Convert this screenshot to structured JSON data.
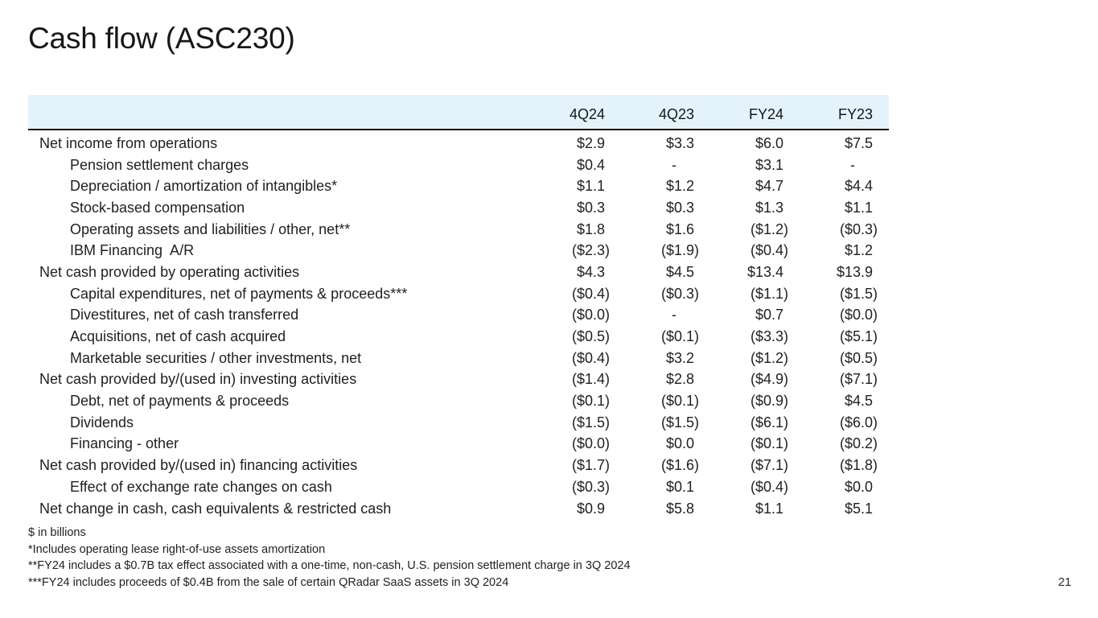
{
  "slide": {
    "title": "Cash flow (ASC230)",
    "page_number": "21",
    "units_note": "$ in billions"
  },
  "colors": {
    "header_band": "#e4f2fb",
    "header_divider": "#161616",
    "text": "#1f1f1f",
    "background": "#ffffff"
  },
  "table": {
    "columns": [
      "4Q24",
      "4Q23",
      "FY24",
      "FY23"
    ],
    "rows": [
      {
        "label": "Net income from operations",
        "indent": 0,
        "values": [
          "$2.9",
          "$3.3",
          "$6.0",
          "$7.5"
        ]
      },
      {
        "label": "Pension settlement charges",
        "indent": 1,
        "values": [
          "$0.4",
          "-",
          "$3.1",
          "-"
        ]
      },
      {
        "label": "Depreciation / amortization of intangibles*",
        "indent": 1,
        "values": [
          "$1.1",
          "$1.2",
          "$4.7",
          "$4.4"
        ]
      },
      {
        "label": "Stock-based compensation",
        "indent": 1,
        "values": [
          "$0.3",
          "$0.3",
          "$1.3",
          "$1.1"
        ]
      },
      {
        "label": "Operating assets and liabilities / other, net**",
        "indent": 1,
        "values": [
          "$1.8",
          "$1.6",
          "($1.2)",
          "($0.3)"
        ]
      },
      {
        "label": "IBM Financing  A/R",
        "indent": 1,
        "values": [
          "($2.3)",
          "($1.9)",
          "($0.4)",
          "$1.2"
        ]
      },
      {
        "label": "Net cash provided by operating activities",
        "indent": 0,
        "values": [
          "$4.3",
          "$4.5",
          "$13.4",
          "$13.9"
        ]
      },
      {
        "label": "Capital expenditures, net of payments & proceeds***",
        "indent": 1,
        "values": [
          "($0.4)",
          "($0.3)",
          "($1.1)",
          "($1.5)"
        ]
      },
      {
        "label": "Divestitures, net of cash transferred",
        "indent": 1,
        "values": [
          "($0.0)",
          "-",
          "$0.7",
          "($0.0)"
        ]
      },
      {
        "label": "Acquisitions, net of cash acquired",
        "indent": 1,
        "values": [
          "($0.5)",
          "($0.1)",
          "($3.3)",
          "($5.1)"
        ]
      },
      {
        "label": "Marketable securities / other investments, net",
        "indent": 1,
        "values": [
          "($0.4)",
          "$3.2",
          "($1.2)",
          "($0.5)"
        ]
      },
      {
        "label": "Net cash provided by/(used in) investing activities",
        "indent": 0,
        "values": [
          "($1.4)",
          "$2.8",
          "($4.9)",
          "($7.1)"
        ]
      },
      {
        "label": "Debt, net of payments & proceeds",
        "indent": 1,
        "values": [
          "($0.1)",
          "($0.1)",
          "($0.9)",
          "$4.5"
        ]
      },
      {
        "label": "Dividends",
        "indent": 1,
        "values": [
          "($1.5)",
          "($1.5)",
          "($6.1)",
          "($6.0)"
        ]
      },
      {
        "label": "Financing - other",
        "indent": 1,
        "values": [
          "($0.0)",
          "$0.0",
          "($0.1)",
          "($0.2)"
        ]
      },
      {
        "label": "Net cash provided by/(used in) financing activities",
        "indent": 0,
        "values": [
          "($1.7)",
          "($1.6)",
          "($7.1)",
          "($1.8)"
        ]
      },
      {
        "label": "Effect of exchange rate changes on cash",
        "indent": 1,
        "values": [
          "($0.3)",
          "$0.1",
          "($0.4)",
          "$0.0"
        ]
      },
      {
        "label": "Net change in cash, cash equivalents & restricted cash",
        "indent": 0,
        "values": [
          "$0.9",
          "$5.8",
          "$1.1",
          "$5.1"
        ]
      }
    ]
  },
  "footnotes": [
    "$ in billions",
    "*Includes operating lease right-of-use assets amortization",
    "**FY24 includes a $0.7B tax effect associated with a one-time, non-cash, U.S. pension settlement charge in 3Q 2024",
    "***FY24 includes proceeds of $0.4B from the sale of certain QRadar SaaS assets in 3Q 2024"
  ]
}
